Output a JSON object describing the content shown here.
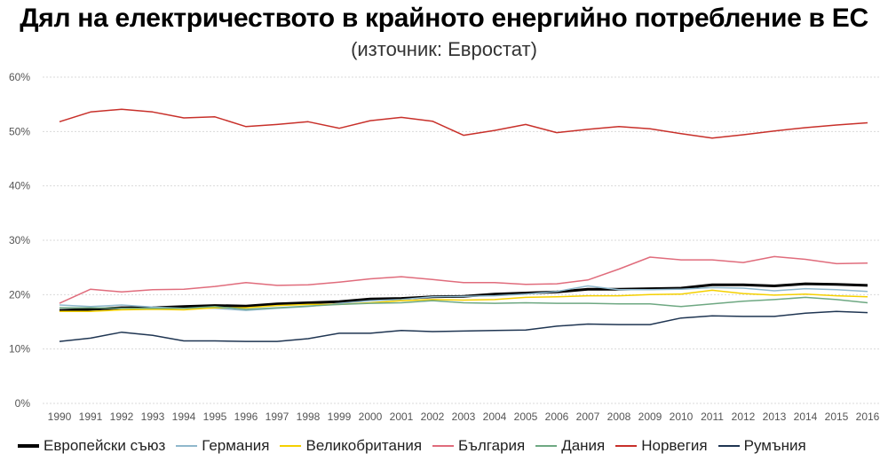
{
  "title": "Дял на електричеството в крайното енергийно потребление в ЕС",
  "subtitle": "(източник: Евростат)",
  "chart_data": {
    "type": "line",
    "x": [
      "1990",
      "1991",
      "1992",
      "1993",
      "1994",
      "1995",
      "1996",
      "1997",
      "1998",
      "1999",
      "2000",
      "2001",
      "2002",
      "2003",
      "2004",
      "2005",
      "2006",
      "2007",
      "2008",
      "2009",
      "2010",
      "2011",
      "2012",
      "2013",
      "2014",
      "2015",
      "2016"
    ],
    "ylim": [
      0,
      60
    ],
    "yticks": [
      0,
      10,
      20,
      30,
      40,
      50,
      60
    ],
    "ytick_labels": [
      "0%",
      "10%",
      "20%",
      "30%",
      "40%",
      "50%",
      "60%"
    ],
    "grid": true,
    "legend_position": "bottom",
    "series": [
      {
        "name": "Европейски съюз",
        "color": "#000000",
        "width": 3,
        "values": [
          17.1,
          17.3,
          17.6,
          17.6,
          17.8,
          18.0,
          17.9,
          18.3,
          18.5,
          18.7,
          19.2,
          19.3,
          19.6,
          19.7,
          20.1,
          20.3,
          20.5,
          21.0,
          21.0,
          21.1,
          21.2,
          21.8,
          21.8,
          21.6,
          22.0,
          21.9,
          21.7
        ]
      },
      {
        "name": "Германия",
        "color": "#8fb8cc",
        "width": 1.5,
        "values": [
          18.1,
          17.8,
          18.1,
          17.7,
          17.5,
          17.5,
          17.1,
          17.5,
          17.8,
          18.4,
          18.9,
          19.1,
          19.6,
          19.7,
          19.8,
          20.1,
          20.6,
          21.6,
          20.9,
          20.9,
          21.0,
          21.3,
          21.2,
          20.7,
          21.1,
          20.9,
          20.6
        ]
      },
      {
        "name": "Великобритания",
        "color": "#f5d000",
        "width": 1.5,
        "values": [
          16.9,
          16.9,
          17.2,
          17.3,
          17.2,
          17.6,
          17.6,
          18.0,
          18.2,
          18.2,
          18.5,
          18.9,
          19.1,
          19.0,
          19.1,
          19.5,
          19.6,
          19.8,
          19.8,
          20.0,
          20.1,
          20.8,
          20.2,
          19.9,
          20.1,
          19.8,
          19.6
        ]
      },
      {
        "name": "България",
        "color": "#e06c7c",
        "width": 1.5,
        "values": [
          18.4,
          21.0,
          20.5,
          20.9,
          21.0,
          21.5,
          22.2,
          21.7,
          21.8,
          22.3,
          22.9,
          23.3,
          22.8,
          22.2,
          22.2,
          21.9,
          22.0,
          22.7,
          24.7,
          26.9,
          26.4,
          26.4,
          25.9,
          27.0,
          26.5,
          25.7,
          25.8
        ]
      },
      {
        "name": "Дания",
        "color": "#6ea882",
        "width": 1.5,
        "values": [
          17.6,
          17.6,
          17.5,
          17.5,
          17.5,
          17.8,
          17.3,
          17.6,
          17.9,
          18.2,
          18.4,
          18.5,
          18.9,
          18.5,
          18.4,
          18.5,
          18.4,
          18.4,
          18.3,
          18.3,
          17.8,
          18.3,
          18.8,
          19.1,
          19.5,
          19.1,
          18.5
        ]
      },
      {
        "name": "Норвегия",
        "color": "#c8302a",
        "width": 1.5,
        "values": [
          51.8,
          53.6,
          54.1,
          53.6,
          52.5,
          52.7,
          50.9,
          51.3,
          51.8,
          50.6,
          52.0,
          52.6,
          51.9,
          49.3,
          50.2,
          51.3,
          49.8,
          50.4,
          50.9,
          50.5,
          49.6,
          48.8,
          49.4,
          50.1,
          50.7,
          51.2,
          51.6
        ]
      },
      {
        "name": "Румъния",
        "color": "#1f3552",
        "width": 1.5,
        "values": [
          11.4,
          12.0,
          13.1,
          12.5,
          11.5,
          11.5,
          11.4,
          11.4,
          11.9,
          12.9,
          12.9,
          13.4,
          13.2,
          13.3,
          13.4,
          13.5,
          14.2,
          14.6,
          14.5,
          14.5,
          15.7,
          16.1,
          16.0,
          16.0,
          16.6,
          16.9,
          16.7
        ]
      }
    ]
  }
}
